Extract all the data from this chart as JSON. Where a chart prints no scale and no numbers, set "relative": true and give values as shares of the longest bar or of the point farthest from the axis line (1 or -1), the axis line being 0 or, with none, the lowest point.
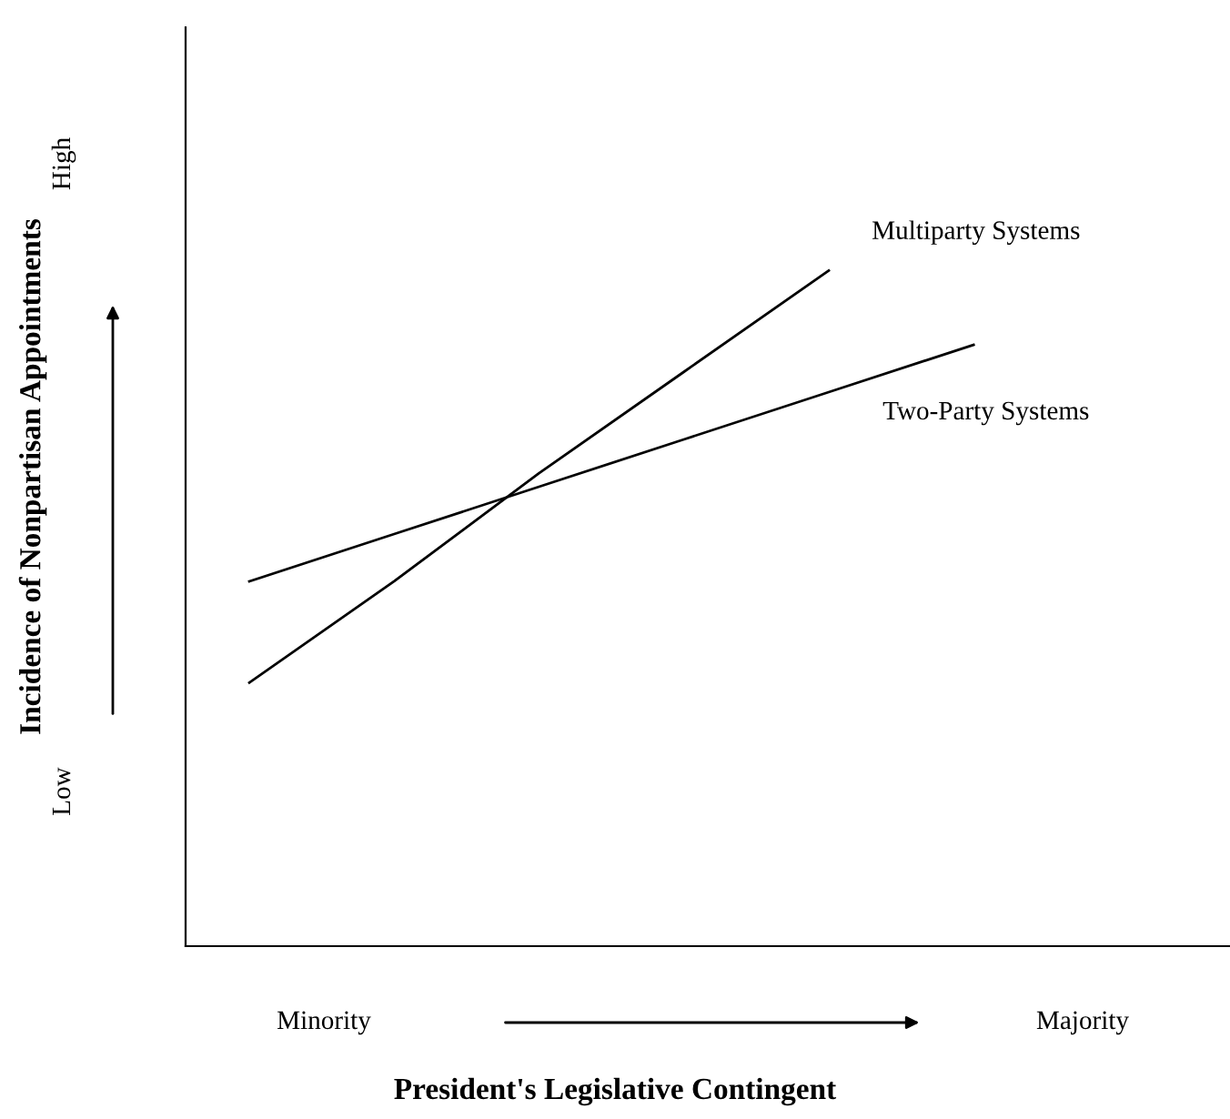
{
  "chart_data": {
    "type": "line",
    "xlabel": "President's Legislative Contingent",
    "ylabel": "Incidence of Nonpartisan Appointments",
    "relative": true,
    "categories": [
      null,
      null,
      null,
      null,
      null,
      null
    ],
    "series": [
      {
        "name": "Multiparty Systems",
        "color": "#000000",
        "values": [
          0.39,
          0.54,
          0.7,
          0.85,
          1.0,
          null
        ]
      },
      {
        "name": "Two-Party Systems",
        "color": "#000000",
        "values": [
          0.54,
          0.61,
          0.68,
          0.75,
          0.82,
          0.89
        ]
      }
    ],
    "annotations": [
      "Low",
      "High",
      "Minority",
      "Majority"
    ],
    "grid": false,
    "legend": false,
    "marker": "none",
    "line_style": "solid"
  }
}
